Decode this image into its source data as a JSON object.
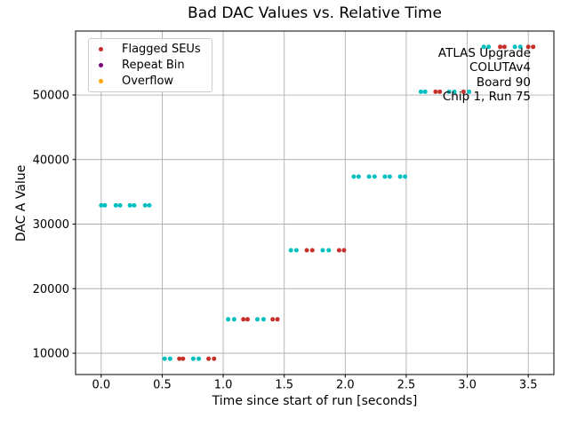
{
  "chart_data": {
    "type": "scatter",
    "title": "Bad DAC Values vs. Relative Time",
    "xlabel": "Time since start of run [seconds]",
    "ylabel": "DAC A Value",
    "xlim": [
      -0.21,
      3.71
    ],
    "ylim": [
      6700,
      59900
    ],
    "xticks": [
      0.0,
      0.5,
      1.0,
      1.5,
      2.0,
      2.5,
      3.0,
      3.5
    ],
    "xtick_labels": [
      "0.0",
      "0.5",
      "1.0",
      "1.5",
      "2.0",
      "2.5",
      "3.0",
      "3.5"
    ],
    "yticks": [
      10000,
      20000,
      30000,
      40000,
      50000
    ],
    "ytick_labels": [
      "10000",
      "20000",
      "30000",
      "40000",
      "50000"
    ],
    "grid": true,
    "grid_color": "#b0b0b0",
    "axes_color": "#000000",
    "legend": {
      "position": "upper-left",
      "entries": [
        {
          "label": "Flagged SEUs",
          "color": "#c5302b"
        },
        {
          "label": "Repeat Bin",
          "color": "#800080"
        },
        {
          "label": "Overflow",
          "color": "#ffa500"
        }
      ]
    },
    "annotation": {
      "align": "right",
      "lines": [
        "ATLAS Upgrade",
        "COLUTAv4",
        "Board 90",
        "Chip 1, Run 75"
      ]
    },
    "series": [
      {
        "name": "dac-values",
        "color": "#00bfbf",
        "in_legend": false,
        "points": [
          [
            0.0,
            32900
          ],
          [
            0.03,
            32900
          ],
          [
            0.12,
            32900
          ],
          [
            0.155,
            32900
          ],
          [
            0.235,
            32900
          ],
          [
            0.27,
            32900
          ],
          [
            0.36,
            32900
          ],
          [
            0.395,
            32900
          ],
          [
            0.52,
            9150
          ],
          [
            0.565,
            9150
          ],
          [
            0.755,
            9150
          ],
          [
            0.8,
            9150
          ],
          [
            1.04,
            15250
          ],
          [
            1.09,
            15250
          ],
          [
            1.28,
            15250
          ],
          [
            1.33,
            15250
          ],
          [
            1.555,
            25950
          ],
          [
            1.6,
            25950
          ],
          [
            1.815,
            25950
          ],
          [
            1.865,
            25950
          ],
          [
            2.07,
            37350
          ],
          [
            2.11,
            37350
          ],
          [
            2.195,
            37350
          ],
          [
            2.24,
            37350
          ],
          [
            2.325,
            37350
          ],
          [
            2.365,
            37350
          ],
          [
            2.45,
            37350
          ],
          [
            2.49,
            37350
          ],
          [
            2.62,
            50500
          ],
          [
            2.655,
            50500
          ],
          [
            2.85,
            50500
          ],
          [
            2.895,
            50500
          ],
          [
            3.015,
            50500
          ],
          [
            3.135,
            57450
          ],
          [
            3.175,
            57450
          ],
          [
            3.39,
            57450
          ],
          [
            3.435,
            57450
          ]
        ]
      },
      {
        "name": "Flagged SEUs",
        "color": "#c5302b",
        "in_legend": true,
        "points": [
          [
            0.64,
            9150
          ],
          [
            0.67,
            9150
          ],
          [
            0.88,
            9150
          ],
          [
            0.925,
            9150
          ],
          [
            1.165,
            15250
          ],
          [
            1.2,
            15250
          ],
          [
            1.405,
            15250
          ],
          [
            1.445,
            15250
          ],
          [
            1.685,
            25950
          ],
          [
            1.73,
            25950
          ],
          [
            1.95,
            25950
          ],
          [
            1.99,
            25950
          ],
          [
            2.74,
            50500
          ],
          [
            2.775,
            50500
          ],
          [
            2.97,
            50500
          ],
          [
            3.27,
            57450
          ],
          [
            3.305,
            57450
          ],
          [
            3.5,
            57450
          ],
          [
            3.54,
            57450
          ]
        ]
      },
      {
        "name": "Repeat Bin",
        "color": "#800080",
        "in_legend": true,
        "points": []
      },
      {
        "name": "Overflow",
        "color": "#ffa500",
        "in_legend": true,
        "points": []
      }
    ]
  }
}
